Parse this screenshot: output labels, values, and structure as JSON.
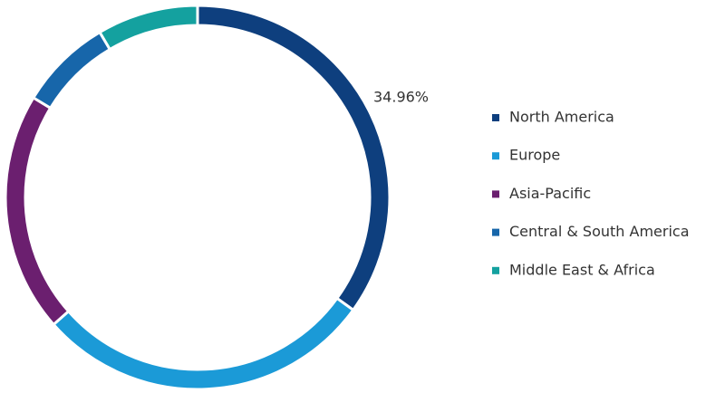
{
  "chart_data": {
    "type": "donut",
    "categories": [
      "North America",
      "Europe",
      "Asia-Pacific",
      "Central & South America",
      "Middle East & Africa"
    ],
    "values": [
      34.96,
      28.5,
      20.2,
      7.8,
      8.5
    ],
    "value_labels": [
      "34.96%",
      null,
      null,
      null,
      null
    ],
    "colors": [
      "#0e3f7e",
      "#1b9ad7",
      "#6b1f6f",
      "#1766aa",
      "#14a19f"
    ],
    "legend": "right"
  }
}
